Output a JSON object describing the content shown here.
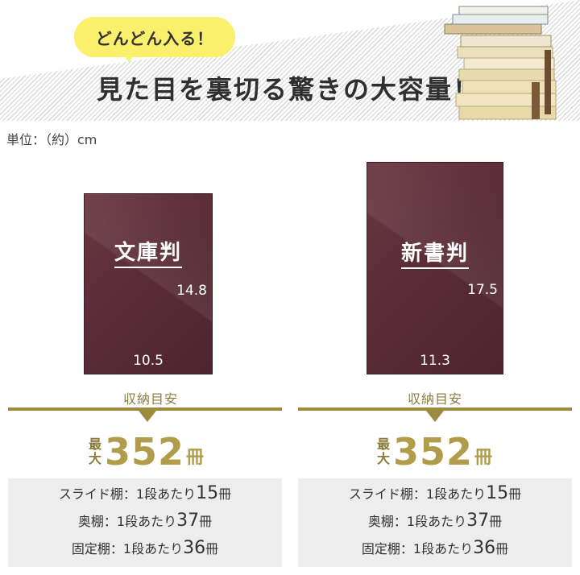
{
  "header": {
    "bubble": "どんどん入る！",
    "headline": "見た目を裏切る驚きの大容量！"
  },
  "unit_label": "単位：（約）cm",
  "panels": [
    {
      "title": "文庫判",
      "height_label": "14.8",
      "width_label": "10.5",
      "guide_label": "収納目安",
      "max_prefix_1": "最",
      "max_prefix_2": "大",
      "max_value": "352",
      "max_unit": "冊",
      "rows": [
        {
          "label": "スライド棚：1段あたり",
          "value": "15",
          "unit": "冊"
        },
        {
          "label": "奥棚：1段あたり",
          "value": "37",
          "unit": "冊"
        },
        {
          "label": "固定棚：1段あたり",
          "value": "36",
          "unit": "冊"
        }
      ]
    },
    {
      "title": "新書判",
      "height_label": "17.5",
      "width_label": "11.3",
      "guide_label": "収納目安",
      "max_prefix_1": "最",
      "max_prefix_2": "大",
      "max_value": "352",
      "max_unit": "冊",
      "rows": [
        {
          "label": "スライド棚：1段あたり",
          "value": "15",
          "unit": "冊"
        },
        {
          "label": "奥棚：1段あたり",
          "value": "37",
          "unit": "冊"
        },
        {
          "label": "固定棚：1段あたり",
          "value": "36",
          "unit": "冊"
        }
      ]
    }
  ],
  "colors": {
    "accent_gold": "#9c8a3f",
    "card": "#5a2c37",
    "bubble": "#fbf06b"
  }
}
